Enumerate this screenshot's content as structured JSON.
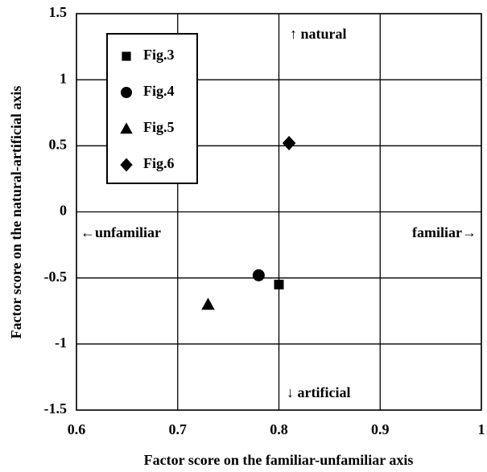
{
  "chart_data": {
    "type": "scatter",
    "xlabel": "Factor score on the familiar-unfamiliar axis",
    "ylabel": "Factor score on the natural-artificial axis",
    "xlim": [
      0.6,
      1
    ],
    "xticks": [
      0.6,
      0.7,
      0.8,
      0.9,
      1
    ],
    "ylim": [
      -1.5,
      1.5
    ],
    "yticks": [
      -1.5,
      -1,
      -0.5,
      0,
      0.5,
      1,
      1.5
    ],
    "grid": true,
    "legend": "upper left",
    "annotations": [
      "↑ natural",
      "↓ artificial",
      "←unfamiliar",
      "familiar→"
    ],
    "series": [
      {
        "name": "Fig.3",
        "color": "#000000",
        "marker": "square",
        "x": [
          0.8
        ],
        "values": [
          -0.55
        ]
      },
      {
        "name": "Fig.4",
        "color": "#000000",
        "marker": "circle",
        "x": [
          0.78
        ],
        "values": [
          -0.48
        ]
      },
      {
        "name": "Fig.5",
        "color": "#000000",
        "marker": "triangle",
        "x": [
          0.73
        ],
        "values": [
          -0.7
        ]
      },
      {
        "name": "Fig.6",
        "color": "#000000",
        "marker": "diamond",
        "x": [
          0.81
        ],
        "values": [
          0.52
        ]
      }
    ]
  }
}
